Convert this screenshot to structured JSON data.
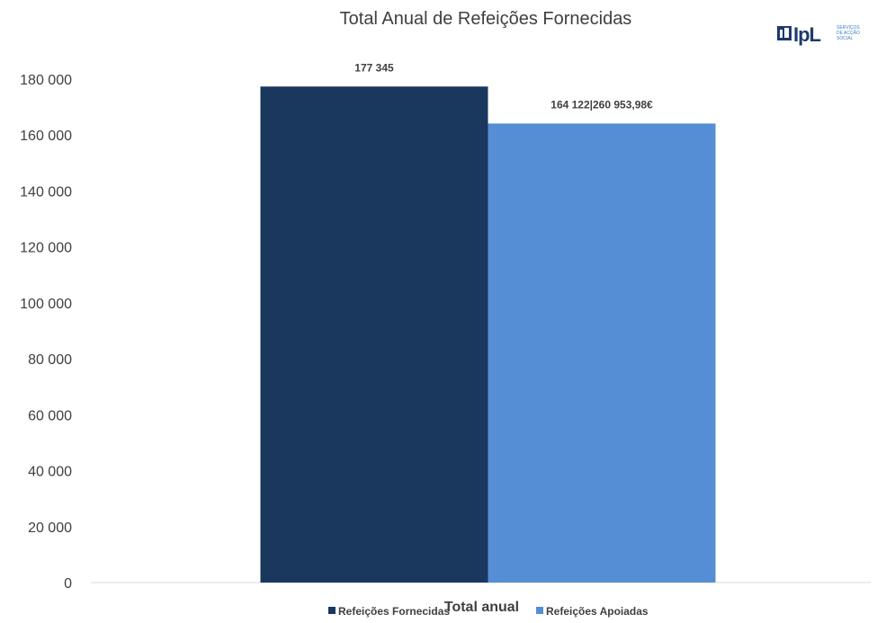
{
  "chart_data": {
    "type": "bar",
    "title": "Total Anual de Refeições Fornecidas",
    "categories": [
      "Total anual"
    ],
    "series": [
      {
        "name": "Refeições Fornecidas",
        "values": [
          177345
        ],
        "color": "#1a375e",
        "data_label": "177 345"
      },
      {
        "name": "Refeições Apoiadas",
        "values": [
          164122
        ],
        "color": "#558ed5",
        "data_label": "164 122|260 953,98€"
      }
    ],
    "ylim": [
      0,
      180000
    ],
    "yticks": [
      0,
      20000,
      40000,
      60000,
      80000,
      100000,
      120000,
      140000,
      160000,
      180000
    ],
    "ytick_labels": [
      "0",
      "20 000",
      "40 000",
      "60 000",
      "80 000",
      "100 000",
      "120 000",
      "140 000",
      "160 000",
      "180 000"
    ],
    "grid": false,
    "legend_position": "bottom"
  },
  "logo": {
    "text": "IpL",
    "sub_lines": [
      "SERVIÇOS",
      "DE ACÇÃO",
      "SOCIAL"
    ]
  }
}
